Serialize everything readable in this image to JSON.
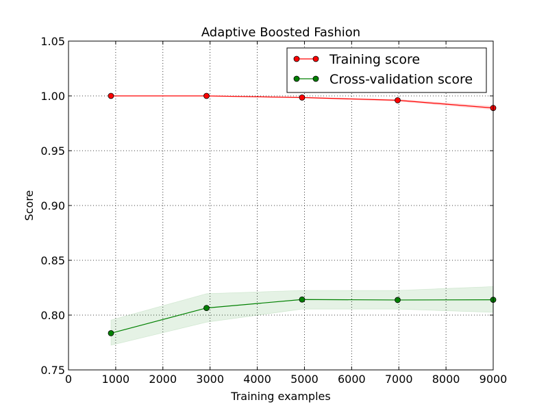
{
  "chart_data": {
    "type": "line",
    "title": "Adaptive Boosted Fashion",
    "xlabel": "Training examples",
    "ylabel": "Score",
    "xlim": [
      0,
      9000
    ],
    "ylim": [
      0.75,
      1.05
    ],
    "x_ticks": [
      "0",
      "1000",
      "2000",
      "3000",
      "4000",
      "5000",
      "6000",
      "7000",
      "8000",
      "9000"
    ],
    "y_ticks": [
      "0.75",
      "0.80",
      "0.85",
      "0.90",
      "0.95",
      "1.00",
      "1.05"
    ],
    "grid": true,
    "legend_position": "top-right",
    "series": [
      {
        "name": "Training score",
        "color": "#ff0000",
        "x": [
          900,
          2925,
          4950,
          6975,
          9000
        ],
        "y": [
          1.0,
          1.0,
          0.9985,
          0.996,
          0.989
        ],
        "y_lower": [
          1.0,
          1.0,
          0.9982,
          0.9952,
          0.9875
        ],
        "y_upper": [
          1.0,
          1.0,
          0.9988,
          0.9968,
          0.9905
        ]
      },
      {
        "name": "Cross-validation score",
        "color": "#008000",
        "x": [
          900,
          2925,
          4950,
          6975,
          9000
        ],
        "y": [
          0.7835,
          0.8065,
          0.8142,
          0.8138,
          0.814
        ],
        "y_lower": [
          0.7725,
          0.7935,
          0.8055,
          0.8055,
          0.8025
        ],
        "y_upper": [
          0.7955,
          0.8195,
          0.8225,
          0.8225,
          0.826
        ]
      }
    ]
  }
}
